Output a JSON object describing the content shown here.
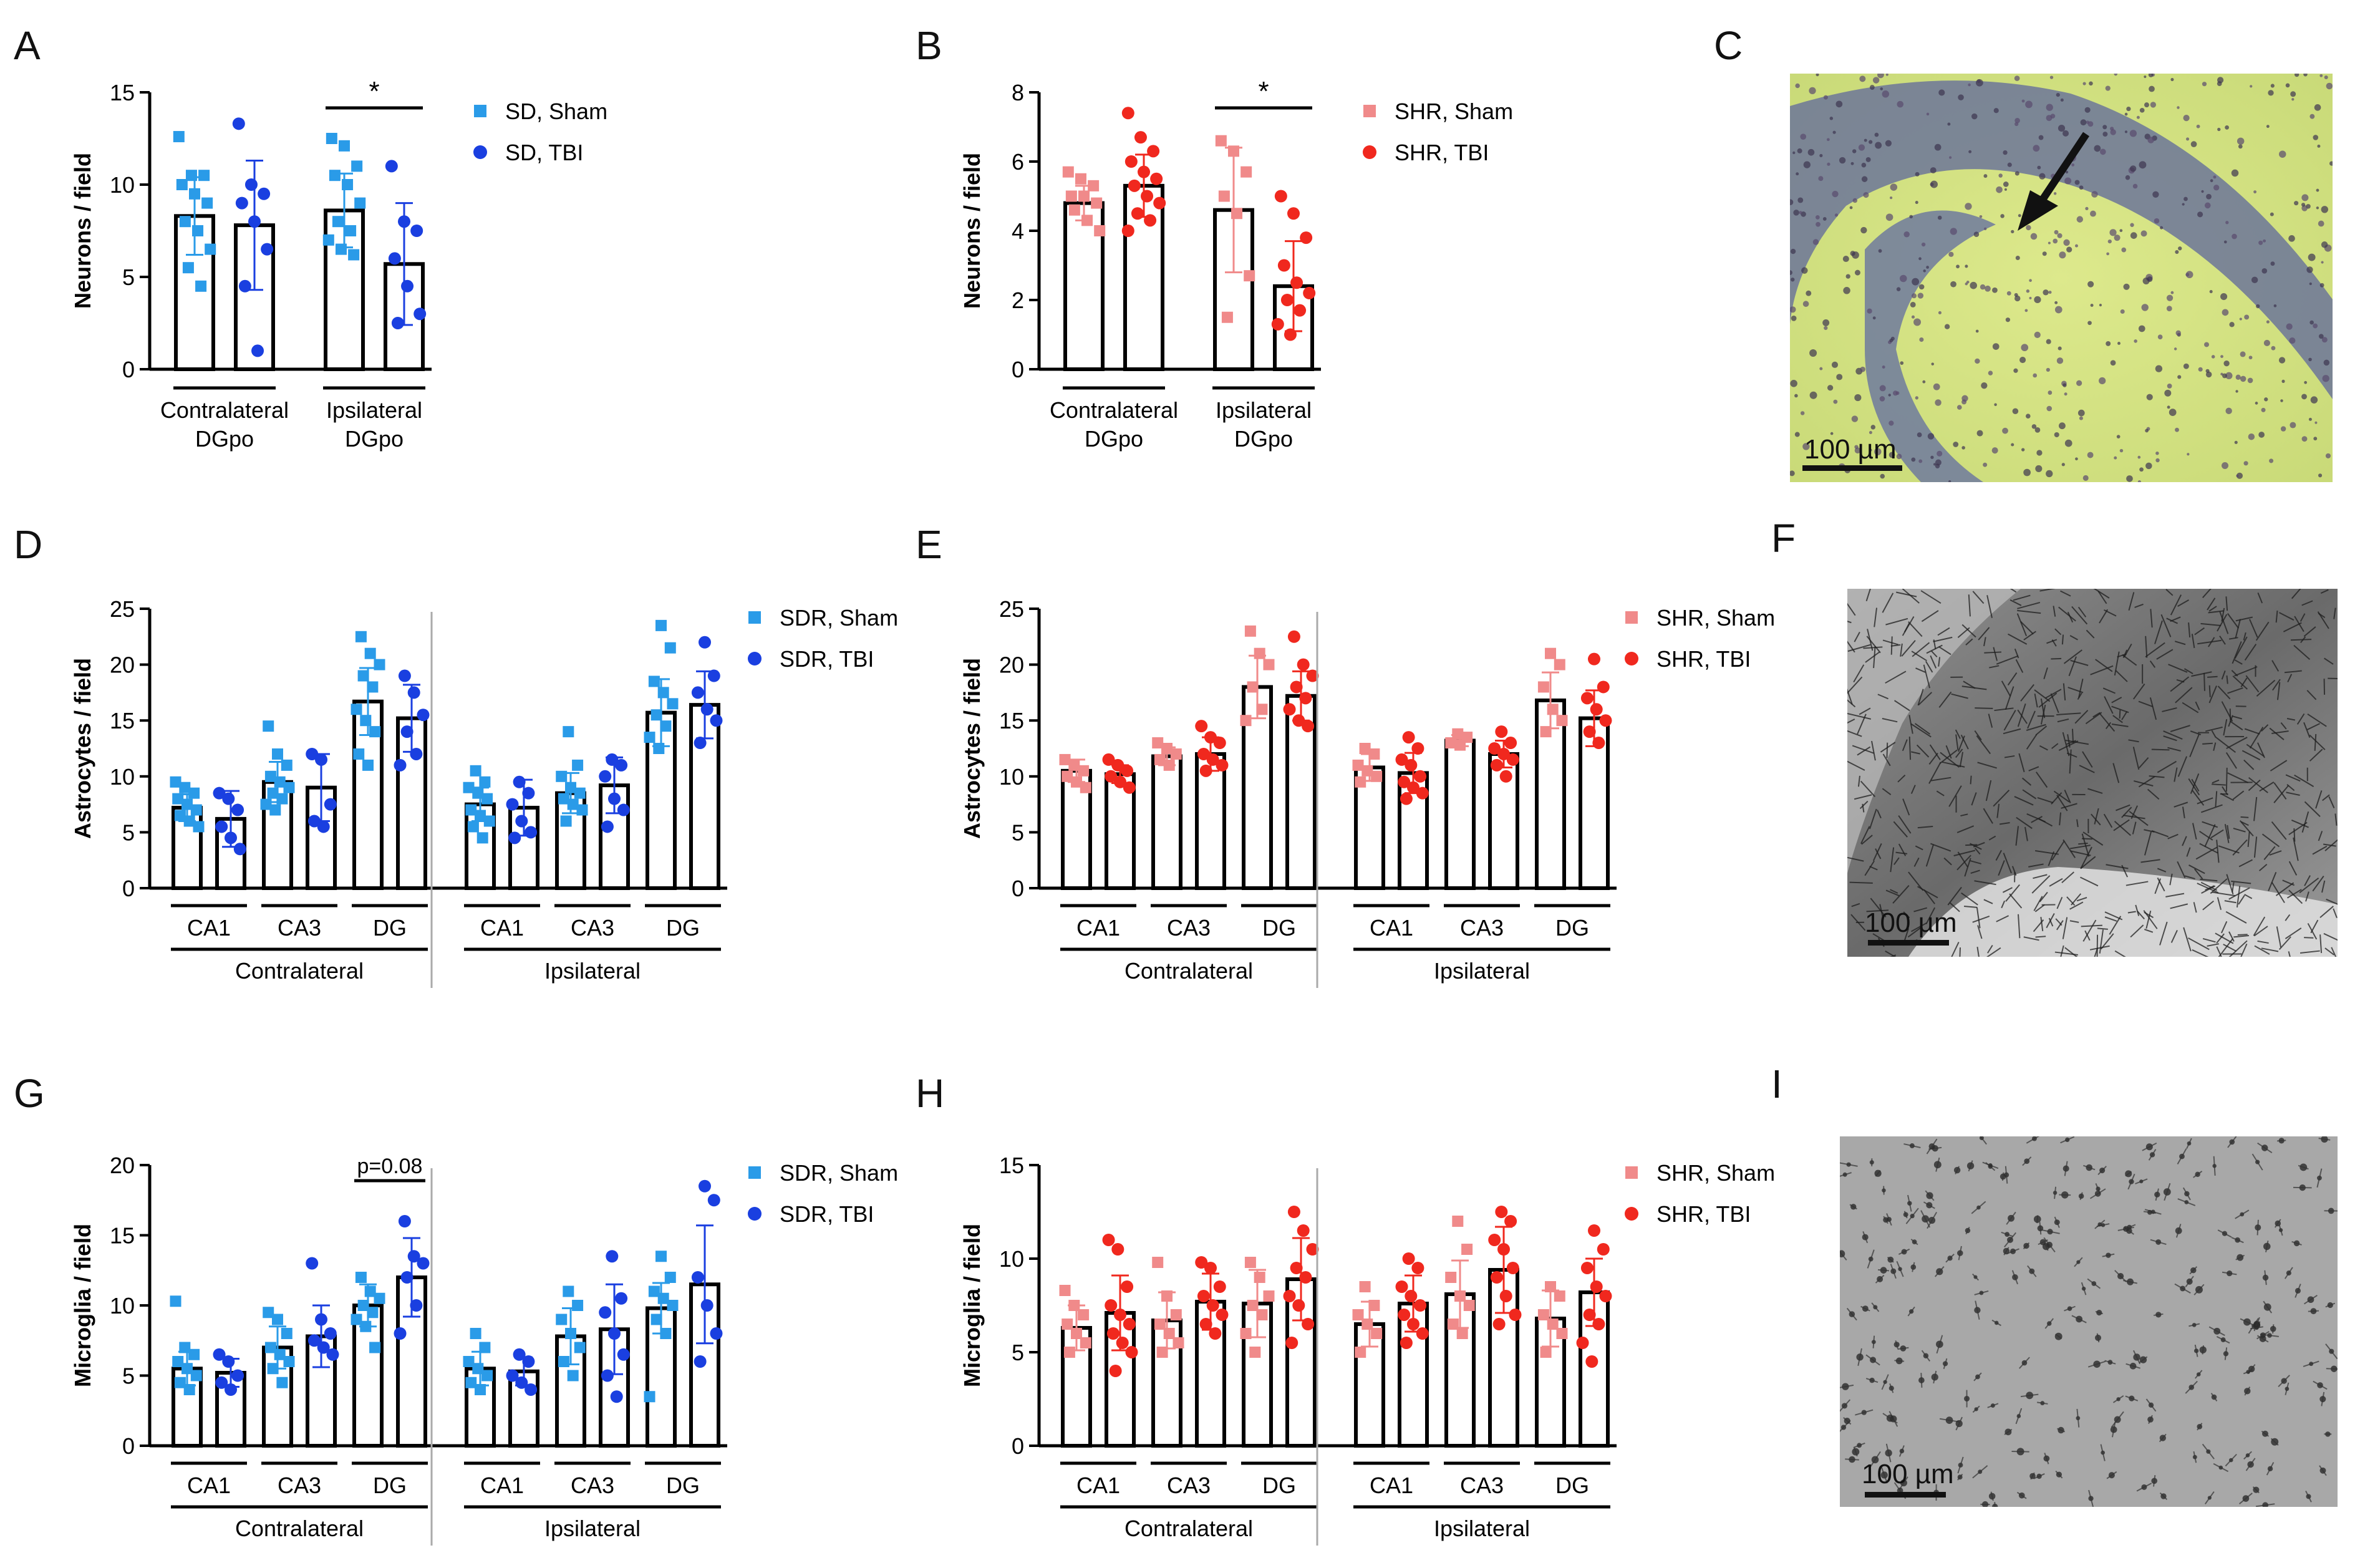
{
  "panel_letters": [
    "A",
    "B",
    "C",
    "D",
    "E",
    "F",
    "G",
    "H",
    "I"
  ],
  "micrographs": [
    {
      "panel": "C",
      "scale_label": "100 µm",
      "stain": "light green/yellow background, purple granular cell layer, arrow"
    },
    {
      "panel": "F",
      "scale_label": "100 µm",
      "stain": "grayscale astrocyte staining"
    },
    {
      "panel": "I",
      "scale_label": "100 µm",
      "stain": "grayscale microglia staining"
    }
  ],
  "colors": {
    "sd_sham": "#2a9be8",
    "sd_tbi": "#1a3fe0",
    "shr_sham": "#f08a8a",
    "shr_tbi": "#f0281e",
    "axis": "#000000"
  },
  "chart_data": [
    {
      "panel": "A",
      "type": "bar",
      "ylabel": "Neurons / field",
      "ylim": [
        0,
        15
      ],
      "yticks": [
        0,
        5,
        10,
        15
      ],
      "group_labels": [
        [
          "Contralateral",
          "DGpo"
        ],
        [
          "Ipsilateral",
          "DGpo"
        ]
      ],
      "bars_per_group": 2,
      "series": [
        {
          "name": "SD, Sham",
          "marker": "square",
          "values": [
            8.3,
            8.6
          ],
          "sd": [
            2.1,
            2.0
          ],
          "points": [
            [
              12.6,
              10.5,
              10.5,
              10.0,
              9.5,
              9.0,
              8.0,
              7.5,
              6.5,
              5.5,
              4.5
            ],
            [
              12.5,
              12.1,
              11.0,
              10.5,
              10.0,
              9.0,
              8.0,
              7.5,
              7.0,
              6.5,
              6.2
            ]
          ]
        },
        {
          "name": "SD, TBI",
          "marker": "circle",
          "values": [
            7.8,
            5.7
          ],
          "sd": [
            3.5,
            3.3
          ],
          "points": [
            [
              13.3,
              10.0,
              9.5,
              9.0,
              8.0,
              6.5,
              4.5,
              1.0
            ],
            [
              11.0,
              8.0,
              7.5,
              6.0,
              4.5,
              3.0,
              2.5
            ]
          ]
        }
      ],
      "annotations": [
        {
          "text": "*",
          "group": 1
        }
      ]
    },
    {
      "panel": "B",
      "type": "bar",
      "ylabel": "Neurons / field",
      "ylim": [
        0,
        8
      ],
      "yticks": [
        0,
        2,
        4,
        6,
        8
      ],
      "group_labels": [
        [
          "Contralateral",
          "DGpo"
        ],
        [
          "Ipsilateral",
          "DGpo"
        ]
      ],
      "bars_per_group": 2,
      "series": [
        {
          "name": "SHR, Sham",
          "marker": "square",
          "values": [
            4.8,
            4.6
          ],
          "sd": [
            0.5,
            1.8
          ],
          "points": [
            [
              5.7,
              5.5,
              5.3,
              5.0,
              5.0,
              4.8,
              4.6,
              4.3,
              4.0
            ],
            [
              6.6,
              6.3,
              5.7,
              5.0,
              4.5,
              2.7,
              1.5
            ]
          ]
        },
        {
          "name": "SHR, TBI",
          "marker": "circle",
          "values": [
            5.3,
            2.4
          ],
          "sd": [
            0.9,
            1.3
          ],
          "points": [
            [
              7.4,
              6.7,
              6.3,
              6.0,
              5.7,
              5.5,
              5.3,
              5.0,
              4.8,
              4.5,
              4.3,
              4.0
            ],
            [
              5.0,
              4.5,
              3.8,
              3.0,
              2.5,
              2.2,
              2.0,
              1.7,
              1.3,
              1.0
            ]
          ]
        }
      ],
      "annotations": [
        {
          "text": "*",
          "group": 1
        }
      ]
    },
    {
      "panel": "D",
      "type": "bar",
      "ylabel": "Astrocytes / field",
      "ylim": [
        0,
        25
      ],
      "yticks": [
        0,
        5,
        10,
        15,
        20,
        25
      ],
      "categories": [
        "CA1",
        "CA3",
        "DG",
        "CA1",
        "CA3",
        "DG"
      ],
      "sides": [
        "Contralateral",
        "Ipsilateral"
      ],
      "bars_per_group": 2,
      "series": [
        {
          "name": "SDR, Sham",
          "marker": "square",
          "values": [
            7.2,
            9.5,
            16.7,
            7.5,
            8.5,
            15.7
          ],
          "sd": [
            1.2,
            1.8,
            3.0,
            1.5,
            1.8,
            3.0
          ],
          "points": [
            [
              9.5,
              9.0,
              8.5,
              8.0,
              7.5,
              7.0,
              6.5,
              6.0,
              5.5
            ],
            [
              14.5,
              12.0,
              11.0,
              10.0,
              9.5,
              9.0,
              8.5,
              8.0,
              7.5,
              7.0
            ],
            [
              22.5,
              21.0,
              20.0,
              19.0,
              18.0,
              16.0,
              15.0,
              14.0,
              12.0,
              11.0
            ],
            [
              10.5,
              9.5,
              9.0,
              8.5,
              8.0,
              7.0,
              6.5,
              6.0,
              5.5,
              4.5
            ],
            [
              14.0,
              11.0,
              10.0,
              9.0,
              8.5,
              8.0,
              7.5,
              7.0,
              6.0
            ],
            [
              23.5,
              21.5,
              18.5,
              17.5,
              16.5,
              15.5,
              14.5,
              13.5,
              12.5
            ]
          ]
        },
        {
          "name": "SDR, TBI",
          "marker": "circle",
          "values": [
            6.2,
            9.0,
            15.2,
            7.2,
            9.2,
            16.4
          ],
          "sd": [
            2.5,
            3.0,
            3.0,
            2.5,
            2.5,
            3.0
          ],
          "points": [
            [
              8.5,
              8.0,
              7.0,
              5.5,
              4.5,
              3.5
            ],
            [
              12.0,
              11.5,
              7.5,
              6.0,
              5.5
            ],
            [
              19.0,
              17.5,
              15.5,
              14.0,
              12.0,
              11.0
            ],
            [
              9.5,
              8.5,
              7.5,
              6.0,
              5.0,
              4.5
            ],
            [
              11.5,
              11.0,
              10.0,
              8.0,
              7.0,
              5.5
            ],
            [
              22.0,
              19.0,
              17.5,
              16.0,
              15.0,
              13.0
            ]
          ]
        }
      ]
    },
    {
      "panel": "E",
      "type": "bar",
      "ylabel": "Astrocytes / field",
      "ylim": [
        0,
        25
      ],
      "yticks": [
        0,
        5,
        10,
        15,
        20,
        25
      ],
      "categories": [
        "CA1",
        "CA3",
        "DG",
        "CA1",
        "CA3",
        "DG"
      ],
      "sides": [
        "Contralateral",
        "Ipsilateral"
      ],
      "bars_per_group": 2,
      "series": [
        {
          "name": "SHR, Sham",
          "marker": "square",
          "values": [
            10.5,
            11.8,
            18.0,
            10.8,
            13.2,
            16.8
          ],
          "sd": [
            1.0,
            0.8,
            2.8,
            1.2,
            0.5,
            2.5
          ],
          "points": [
            [
              11.5,
              11.0,
              10.5,
              10.0,
              9.5,
              9.0
            ],
            [
              13.0,
              12.5,
              12.0,
              11.5,
              11.0
            ],
            [
              23.0,
              21.0,
              20.0,
              18.0,
              16.0,
              15.0
            ],
            [
              12.5,
              12.0,
              11.0,
              10.5,
              10.0,
              9.5
            ],
            [
              13.8,
              13.5,
              13.0,
              12.8
            ],
            [
              21.0,
              20.0,
              18.0,
              16.0,
              15.0,
              14.0
            ]
          ]
        },
        {
          "name": "SHR, TBI",
          "marker": "circle",
          "values": [
            10.2,
            12.0,
            17.2,
            10.3,
            12.0,
            15.2
          ],
          "sd": [
            0.8,
            1.5,
            2.2,
            1.8,
            1.2,
            2.5
          ],
          "points": [
            [
              11.5,
              11.0,
              10.5,
              10.0,
              9.5,
              9.0
            ],
            [
              14.5,
              13.5,
              13.0,
              12.0,
              11.5,
              11.0,
              10.5
            ],
            [
              22.5,
              20.0,
              19.0,
              18.0,
              17.0,
              16.0,
              15.0,
              14.5
            ],
            [
              13.5,
              12.5,
              11.5,
              11.0,
              10.0,
              9.5,
              9.0,
              8.5,
              8.0
            ],
            [
              14.0,
              13.0,
              12.5,
              12.0,
              11.5,
              11.0,
              10.0
            ],
            [
              20.5,
              18.0,
              17.0,
              16.0,
              15.0,
              14.0,
              13.0
            ]
          ]
        }
      ]
    },
    {
      "panel": "G",
      "type": "bar",
      "ylabel": "Microglia / field",
      "ylim": [
        0,
        20
      ],
      "yticks": [
        0,
        5,
        10,
        15,
        20
      ],
      "categories": [
        "CA1",
        "CA3",
        "DG",
        "CA1",
        "CA3",
        "DG"
      ],
      "sides": [
        "Contralateral",
        "Ipsilateral"
      ],
      "bars_per_group": 2,
      "series": [
        {
          "name": "SDR, Sham",
          "marker": "square",
          "values": [
            5.5,
            7.0,
            10.0,
            5.5,
            7.8,
            9.8
          ],
          "sd": [
            1.2,
            1.5,
            1.5,
            1.2,
            2.0,
            1.8
          ],
          "points": [
            [
              10.3,
              7.0,
              6.5,
              6.0,
              5.5,
              5.0,
              4.5,
              4.0
            ],
            [
              9.5,
              9.0,
              8.0,
              7.0,
              6.5,
              6.0,
              5.5,
              4.5
            ],
            [
              12.0,
              11.0,
              10.5,
              10.0,
              9.5,
              9.0,
              8.5,
              7.0
            ],
            [
              8.0,
              7.0,
              6.0,
              5.5,
              5.0,
              4.5,
              4.0
            ],
            [
              11.0,
              10.0,
              9.0,
              8.0,
              7.0,
              6.0,
              5.0
            ],
            [
              13.5,
              12.0,
              11.0,
              10.5,
              10.0,
              9.0,
              8.0,
              3.5
            ]
          ]
        },
        {
          "name": "SDR, TBI",
          "marker": "circle",
          "values": [
            5.2,
            7.8,
            12.0,
            5.3,
            8.3,
            11.5
          ],
          "sd": [
            1.0,
            2.2,
            2.8,
            1.0,
            3.2,
            4.2
          ],
          "points": [
            [
              6.5,
              6.0,
              5.0,
              4.5,
              4.0
            ],
            [
              13.0,
              9.0,
              8.0,
              7.5,
              7.0,
              6.5
            ],
            [
              16.0,
              13.5,
              13.0,
              12.0,
              10.0,
              8.0
            ],
            [
              6.5,
              6.0,
              5.0,
              4.5,
              4.0
            ],
            [
              13.5,
              10.5,
              9.5,
              8.0,
              6.5,
              5.0,
              3.5
            ],
            [
              18.5,
              17.5,
              12.0,
              10.0,
              8.0,
              6.0
            ]
          ]
        }
      ],
      "annotations": [
        {
          "text": "p=0.08",
          "group": 2
        }
      ]
    },
    {
      "panel": "H",
      "type": "bar",
      "ylabel": "Microglia / field",
      "ylim": [
        0,
        15
      ],
      "yticks": [
        0,
        5,
        10,
        15
      ],
      "categories": [
        "CA1",
        "CA3",
        "DG",
        "CA1",
        "CA3",
        "DG"
      ],
      "sides": [
        "Contralateral",
        "Ipsilateral"
      ],
      "bars_per_group": 2,
      "series": [
        {
          "name": "SHR, Sham",
          "marker": "square",
          "values": [
            6.3,
            6.7,
            7.6,
            6.5,
            8.1,
            6.8
          ],
          "sd": [
            1.2,
            1.5,
            1.8,
            1.2,
            1.8,
            1.5
          ],
          "points": [
            [
              8.3,
              7.5,
              7.0,
              6.5,
              6.0,
              5.5,
              5.0
            ],
            [
              9.8,
              8.0,
              7.0,
              6.5,
              6.0,
              5.5,
              5.0
            ],
            [
              9.8,
              9.0,
              8.0,
              7.5,
              7.0,
              6.0,
              5.0
            ],
            [
              8.5,
              7.5,
              7.0,
              6.5,
              6.0,
              5.0
            ],
            [
              12.0,
              10.5,
              9.0,
              8.0,
              7.5,
              6.5,
              6.0
            ],
            [
              8.5,
              8.0,
              7.0,
              6.5,
              6.0,
              5.0
            ]
          ]
        },
        {
          "name": "SHR, TBI",
          "marker": "circle",
          "values": [
            7.1,
            7.7,
            8.9,
            7.6,
            9.4,
            8.2
          ],
          "sd": [
            2.0,
            1.5,
            2.2,
            1.5,
            2.3,
            1.8
          ],
          "points": [
            [
              11.0,
              10.5,
              8.5,
              7.5,
              7.0,
              6.5,
              6.0,
              5.5,
              5.0,
              4.0
            ],
            [
              9.8,
              9.5,
              8.5,
              8.0,
              7.5,
              7.0,
              6.5,
              6.0
            ],
            [
              12.5,
              11.5,
              10.5,
              9.5,
              9.0,
              8.0,
              7.5,
              6.5,
              5.5
            ],
            [
              10.0,
              9.5,
              8.5,
              8.0,
              7.5,
              7.0,
              6.5,
              6.0,
              5.5
            ],
            [
              12.5,
              12.0,
              11.0,
              10.5,
              9.5,
              9.0,
              8.0,
              7.0,
              6.5
            ],
            [
              11.5,
              10.5,
              9.5,
              8.5,
              8.0,
              7.0,
              6.5,
              5.5,
              4.5
            ]
          ]
        }
      ]
    }
  ]
}
